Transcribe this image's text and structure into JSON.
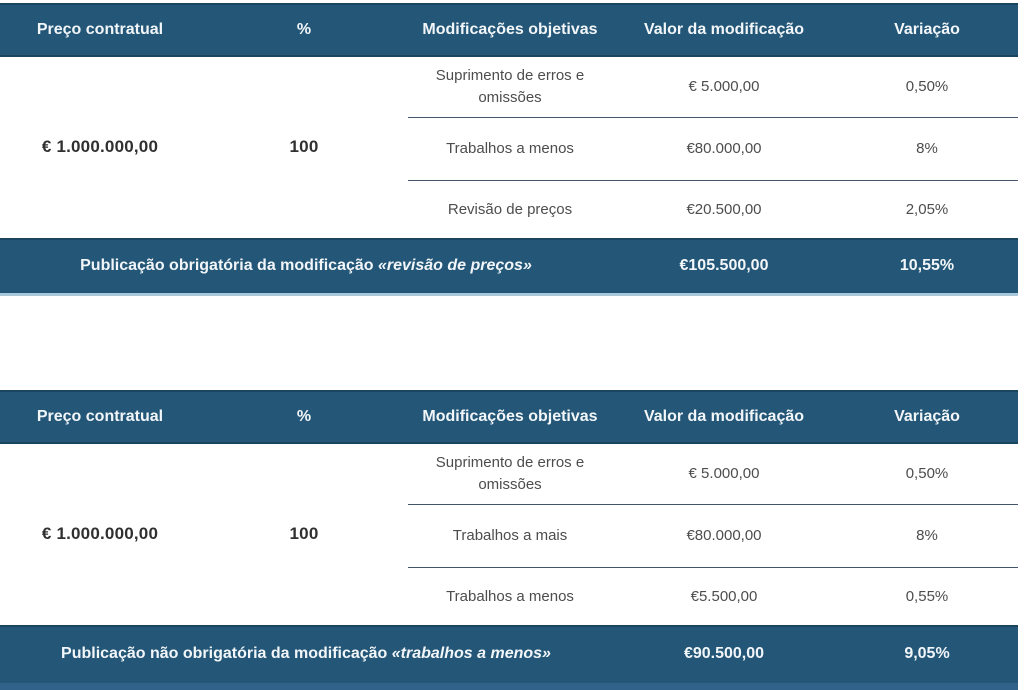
{
  "colors": {
    "bar_bg": "#235677",
    "bar_edge": "#1a4560",
    "bar_text": "#f2f6f9",
    "light_border": "#a9c7da",
    "divider": "#44546a",
    "body_text": "#4d4d4d",
    "strong_text": "#303030",
    "bottom_strip": "#31638a",
    "page_bg": "#ffffff"
  },
  "tables": [
    {
      "headers": [
        "Preço contratual",
        "%",
        "Modificações objetivas",
        "Valor da modificação",
        "Variação"
      ],
      "price": "€ 1.000.000,00",
      "percent": "100",
      "rows": [
        {
          "label": "Suprimento de erros e omissões",
          "value": "€ 5.000,00",
          "variation": "0,50%"
        },
        {
          "label": "Trabalhos a menos",
          "value": "€80.000,00",
          "variation": "8%"
        },
        {
          "label": "Revisão de preços",
          "value": "€20.500,00",
          "variation": "2,05%"
        }
      ],
      "footer": {
        "label_prefix": "Publicação obrigatória da modificação ",
        "label_emphasis": "«revisão de preços»",
        "value": "€105.500,00",
        "variation": "10,55%"
      }
    },
    {
      "headers": [
        "Preço contratual",
        "%",
        "Modificações objetivas",
        "Valor da modificação",
        "Variação"
      ],
      "price": "€ 1.000.000,00",
      "percent": "100",
      "rows": [
        {
          "label": "Suprimento de erros e omissões",
          "value": "€ 5.000,00",
          "variation": "0,50%"
        },
        {
          "label": "Trabalhos a mais",
          "value": "€80.000,00",
          "variation": "8%"
        },
        {
          "label": "Trabalhos a menos",
          "value": "€5.500,00",
          "variation": "0,55%"
        }
      ],
      "footer": {
        "label_prefix": "Publicação não obrigatória da modificação ",
        "label_emphasis": "«trabalhos a menos»",
        "value": "€90.500,00",
        "variation": "9,05%"
      }
    }
  ]
}
